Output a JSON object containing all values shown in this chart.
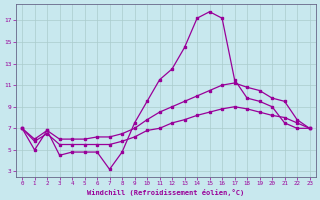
{
  "xlabel": "Windchill (Refroidissement éolien,°C)",
  "background_color": "#c8e8ee",
  "line_color": "#990099",
  "grid_color": "#aacccc",
  "hours": [
    0,
    1,
    2,
    3,
    4,
    5,
    6,
    7,
    8,
    9,
    10,
    11,
    12,
    13,
    14,
    15,
    16,
    17,
    18,
    19,
    20,
    21,
    22,
    23
  ],
  "line1": [
    7.0,
    5.0,
    6.8,
    4.5,
    4.8,
    4.8,
    4.8,
    3.2,
    4.8,
    7.5,
    9.5,
    11.5,
    12.5,
    14.5,
    17.2,
    17.8,
    17.2,
    11.5,
    9.8,
    9.5,
    9.0,
    7.5,
    7.0,
    7.0
  ],
  "line2": [
    7.0,
    6.0,
    6.8,
    6.0,
    6.0,
    6.0,
    6.2,
    6.2,
    6.5,
    7.0,
    7.8,
    8.5,
    9.0,
    9.5,
    10.0,
    10.5,
    11.0,
    11.2,
    10.8,
    10.5,
    9.8,
    9.5,
    7.8,
    7.0
  ],
  "line3": [
    7.0,
    5.8,
    6.5,
    5.5,
    5.5,
    5.5,
    5.5,
    5.5,
    5.8,
    6.2,
    6.8,
    7.0,
    7.5,
    7.8,
    8.2,
    8.5,
    8.8,
    9.0,
    8.8,
    8.5,
    8.2,
    8.0,
    7.5,
    7.0
  ],
  "yticks": [
    3,
    5,
    7,
    9,
    11,
    13,
    15,
    17
  ],
  "xticks": [
    0,
    1,
    2,
    3,
    4,
    5,
    6,
    7,
    8,
    9,
    10,
    11,
    12,
    13,
    14,
    15,
    16,
    17,
    18,
    19,
    20,
    21,
    22,
    23
  ],
  "ymin": 2.5,
  "ymax": 18.5,
  "xmin": -0.5,
  "xmax": 23.5
}
